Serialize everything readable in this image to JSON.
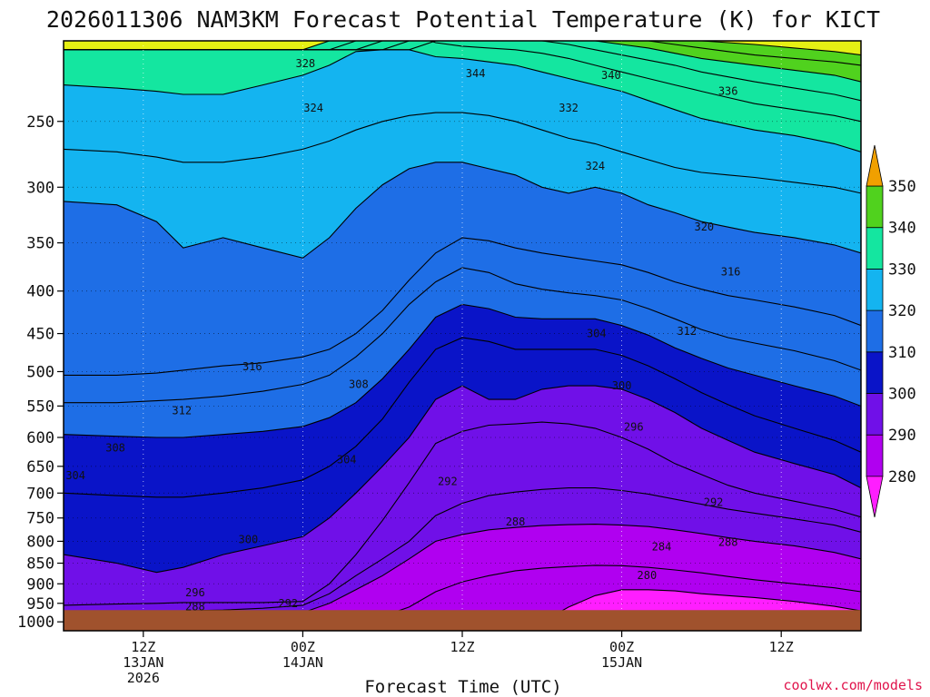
{
  "chart_data": {
    "type": "heatmap",
    "title": "2026011306 NAM3KM Forecast Potential Temperature (K) for KICT",
    "xlabel": "Forecast Time (UTC)",
    "ylabel": "",
    "x_range_hours": [
      0,
      60
    ],
    "y_range_hpa": [
      200,
      1025
    ],
    "y_scale": "log-pressure, inverted",
    "grid": true,
    "y_ticks": [
      250,
      300,
      350,
      400,
      450,
      500,
      550,
      600,
      650,
      700,
      750,
      800,
      850,
      900,
      950,
      1000
    ],
    "x_ticks": [
      {
        "hour": 6,
        "lines": [
          "12Z",
          "13JAN",
          "2026"
        ]
      },
      {
        "hour": 18,
        "lines": [
          "00Z",
          "14JAN"
        ]
      },
      {
        "hour": 30,
        "lines": [
          "12Z"
        ]
      },
      {
        "hour": 42,
        "lines": [
          "00Z",
          "15JAN"
        ]
      },
      {
        "hour": 54,
        "lines": [
          "12Z"
        ]
      }
    ],
    "colorbar": {
      "levels": [
        280,
        290,
        300,
        310,
        320,
        330,
        340,
        350
      ],
      "colors": [
        "#b000f0",
        "#7010e8",
        "#0a14c8",
        "#1e6ee6",
        "#14b4f0",
        "#14e6a0",
        "#50d21e",
        "#e6f014",
        "#f0a000",
        "#ff1eff"
      ],
      "extend": "both"
    },
    "isotherm_x_hours": [
      0,
      4,
      7,
      9,
      12,
      15,
      18,
      20,
      22,
      24,
      26,
      28,
      30,
      32,
      34,
      36,
      38,
      40,
      42,
      44,
      46,
      48,
      50,
      52,
      55,
      58,
      60
    ],
    "isotherms": [
      {
        "theta": 280,
        "p": [
          1020,
          1020,
          1020,
          1020,
          1020,
          1020,
          1020,
          1020,
          1020,
          1020,
          1020,
          1020,
          1020,
          1020,
          1020,
          1000,
          960,
          930,
          915,
          915,
          918,
          925,
          930,
          935,
          945,
          958,
          970
        ]
      },
      {
        "theta": 284,
        "p": [
          1020,
          1020,
          1020,
          1020,
          1020,
          1020,
          1020,
          1015,
          1000,
          985,
          960,
          920,
          895,
          880,
          868,
          862,
          858,
          855,
          856,
          860,
          866,
          873,
          882,
          890,
          900,
          910,
          920
        ]
      },
      {
        "theta": 288,
        "p": [
          1010,
          1005,
          1000,
          998,
          996,
          990,
          975,
          950,
          915,
          880,
          840,
          800,
          785,
          775,
          770,
          766,
          764,
          763,
          765,
          768,
          775,
          783,
          792,
          800,
          810,
          825,
          840
        ]
      },
      {
        "theta": 292,
        "p": [
          978,
          975,
          972,
          970,
          968,
          963,
          955,
          925,
          880,
          840,
          800,
          745,
          720,
          705,
          698,
          693,
          690,
          690,
          695,
          702,
          712,
          722,
          732,
          740,
          752,
          765,
          780
        ]
      },
      {
        "theta": 296,
        "p": [
          955,
          952,
          950,
          948,
          948,
          948,
          945,
          900,
          830,
          755,
          680,
          610,
          590,
          580,
          578,
          575,
          578,
          585,
          600,
          620,
          645,
          665,
          685,
          700,
          716,
          732,
          748
        ]
      },
      {
        "theta": 300,
        "p": [
          830,
          850,
          872,
          860,
          830,
          810,
          790,
          750,
          700,
          650,
          600,
          540,
          520,
          540,
          540,
          525,
          520,
          520,
          525,
          540,
          560,
          585,
          605,
          625,
          645,
          665,
          690
        ]
      },
      {
        "theta": 304,
        "p": [
          700,
          705,
          708,
          708,
          700,
          690,
          675,
          650,
          615,
          570,
          515,
          470,
          455,
          460,
          470,
          470,
          470,
          470,
          478,
          492,
          510,
          530,
          548,
          565,
          585,
          605,
          625
        ]
      },
      {
        "theta": 308,
        "p": [
          595,
          598,
          600,
          600,
          595,
          590,
          582,
          568,
          545,
          510,
          470,
          430,
          415,
          420,
          430,
          432,
          432,
          432,
          440,
          452,
          468,
          482,
          495,
          505,
          520,
          535,
          550
        ]
      },
      {
        "theta": 312,
        "p": [
          545,
          545,
          542,
          540,
          535,
          528,
          518,
          505,
          480,
          450,
          415,
          390,
          375,
          380,
          392,
          398,
          402,
          405,
          410,
          420,
          432,
          445,
          455,
          462,
          472,
          485,
          498
        ]
      },
      {
        "theta": 316,
        "p": [
          505,
          505,
          502,
          498,
          492,
          488,
          480,
          470,
          450,
          422,
          388,
          360,
          345,
          348,
          355,
          360,
          364,
          368,
          372,
          380,
          390,
          398,
          405,
          410,
          418,
          428,
          440
        ]
      },
      {
        "theta": 320,
        "p": [
          312,
          315,
          330,
          355,
          345,
          355,
          365,
          345,
          318,
          298,
          285,
          280,
          280,
          285,
          290,
          300,
          305,
          300,
          305,
          315,
          322,
          330,
          335,
          340,
          345,
          352,
          360
        ]
      },
      {
        "theta": 324,
        "p": [
          270,
          272,
          276,
          280,
          280,
          276,
          270,
          264,
          256,
          250,
          246,
          244,
          244,
          246,
          250,
          256,
          262,
          266,
          272,
          278,
          284,
          288,
          290,
          292,
          296,
          300,
          305
        ]
      },
      {
        "theta": 328,
        "p": [
          226,
          228,
          230,
          232,
          232,
          226,
          220,
          214,
          206,
          205,
          205,
          209,
          210,
          212,
          214,
          218,
          222,
          226,
          230,
          236,
          242,
          248,
          252,
          256,
          260,
          266,
          272
        ]
      },
      {
        "theta": 332,
        "p": [
          205,
          205,
          205,
          205,
          205,
          205,
          205,
          200,
          196,
          196,
          196,
          201,
          203,
          204,
          205,
          207,
          210,
          214,
          218,
          222,
          226,
          230,
          234,
          238,
          242,
          246,
          250
        ]
      },
      {
        "theta": 336,
        "p": [
          205,
          205,
          205,
          205,
          205,
          205,
          205,
          205,
          200,
          196,
          196,
          196,
          196,
          197,
          198,
          200,
          202,
          205,
          208,
          211,
          214,
          218,
          221,
          224,
          228,
          232,
          236
        ]
      },
      {
        "theta": 340,
        "p": [
          205,
          205,
          205,
          205,
          205,
          205,
          205,
          205,
          205,
          200,
          196,
          196,
          196,
          196,
          196,
          197,
          198,
          200,
          202,
          204,
          207,
          210,
          212,
          214,
          217,
          220,
          224
        ]
      },
      {
        "theta": 344,
        "p": [
          205,
          205,
          205,
          205,
          205,
          205,
          205,
          205,
          205,
          205,
          200,
          196,
          196,
          196,
          196,
          196,
          196,
          197,
          199,
          200,
          202,
          204,
          206,
          208,
          210,
          212,
          214
        ]
      },
      {
        "theta": 348,
        "p": [
          205,
          205,
          205,
          205,
          205,
          205,
          205,
          205,
          205,
          205,
          205,
          200,
          196,
          196,
          196,
          196,
          196,
          196,
          196,
          197,
          198,
          200,
          201,
          202,
          204,
          206,
          208
        ]
      }
    ],
    "contour_labels": [
      {
        "text": "328",
        "hour": 18.2,
        "p": 213
      },
      {
        "text": "324",
        "hour": 18.8,
        "p": 241
      },
      {
        "text": "344",
        "hour": 31.0,
        "p": 219
      },
      {
        "text": "340",
        "hour": 41.2,
        "p": 220
      },
      {
        "text": "336",
        "hour": 50.0,
        "p": 230
      },
      {
        "text": "332",
        "hour": 38.0,
        "p": 241
      },
      {
        "text": "324",
        "hour": 40.0,
        "p": 283
      },
      {
        "text": "320",
        "hour": 48.2,
        "p": 335
      },
      {
        "text": "316",
        "hour": 50.2,
        "p": 379
      },
      {
        "text": "312",
        "hour": 46.9,
        "p": 447
      },
      {
        "text": "304",
        "hour": 40.1,
        "p": 450
      },
      {
        "text": "300",
        "hour": 42.0,
        "p": 520
      },
      {
        "text": "296",
        "hour": 42.9,
        "p": 583
      },
      {
        "text": "316",
        "hour": 14.2,
        "p": 493
      },
      {
        "text": "308",
        "hour": 22.2,
        "p": 518
      },
      {
        "text": "312",
        "hour": 8.9,
        "p": 557
      },
      {
        "text": "308",
        "hour": 3.9,
        "p": 618
      },
      {
        "text": "304",
        "hour": 0.9,
        "p": 667
      },
      {
        "text": "304",
        "hour": 21.3,
        "p": 638
      },
      {
        "text": "292",
        "hour": 28.9,
        "p": 678
      },
      {
        "text": "292",
        "hour": 48.9,
        "p": 718
      },
      {
        "text": "288",
        "hour": 34.0,
        "p": 758
      },
      {
        "text": "288",
        "hour": 50.0,
        "p": 802
      },
      {
        "text": "284",
        "hour": 45.0,
        "p": 812
      },
      {
        "text": "280",
        "hour": 43.9,
        "p": 879
      },
      {
        "text": "300",
        "hour": 13.9,
        "p": 796
      },
      {
        "text": "296",
        "hour": 9.9,
        "p": 922
      },
      {
        "text": "292",
        "hour": 16.9,
        "p": 951
      },
      {
        "text": "288",
        "hour": 9.9,
        "p": 959
      }
    ],
    "terrain": {
      "surface_p": 968,
      "color": "#a0522d"
    }
  },
  "watermark": "coolwx.com/models"
}
